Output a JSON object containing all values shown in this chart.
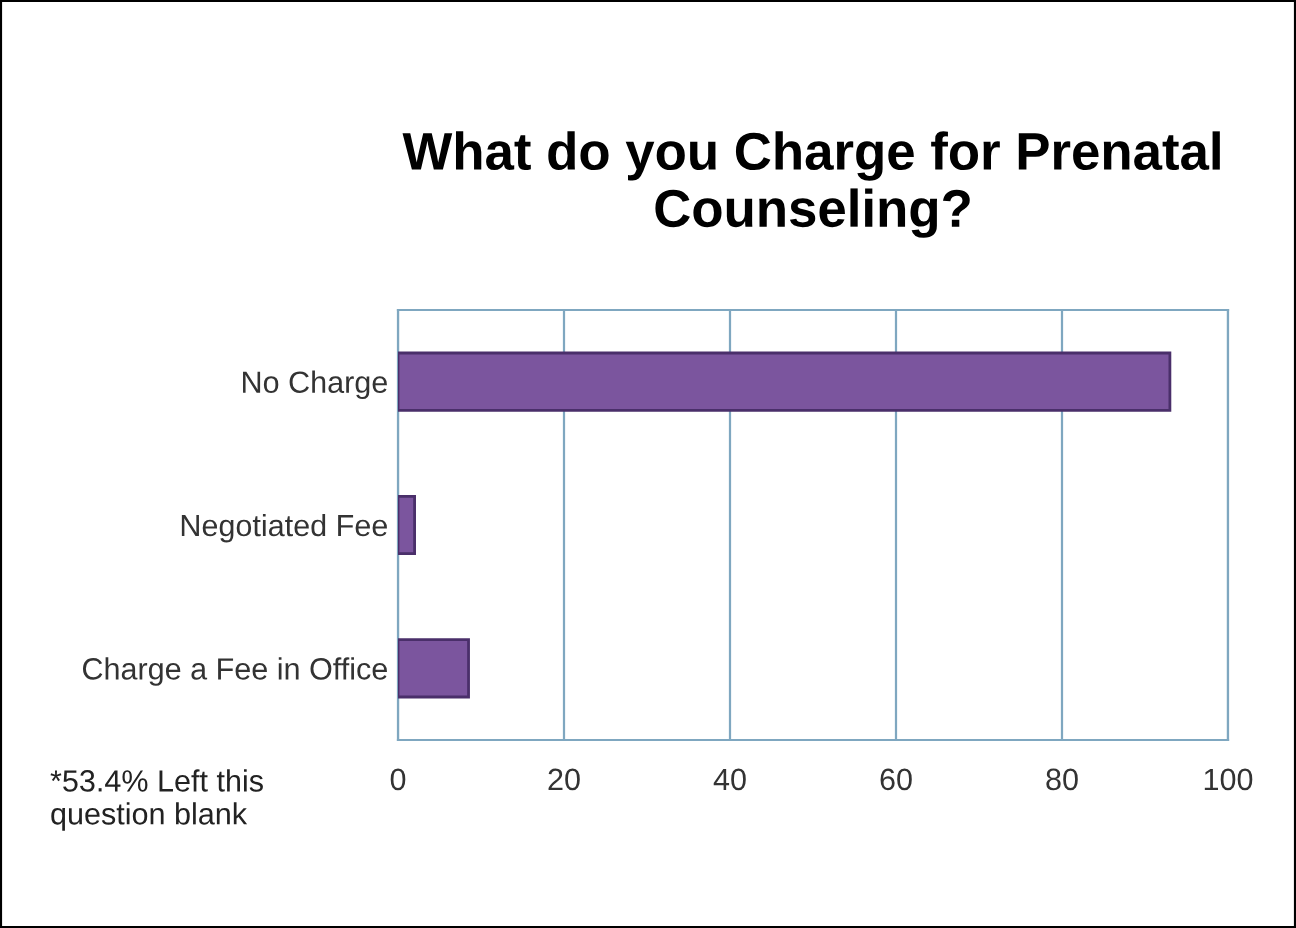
{
  "chart_data": {
    "type": "bar",
    "orientation": "horizontal",
    "title": "What do you Charge for Prenatal\nCounseling?",
    "categories": [
      "No Charge",
      "Negotiated Fee",
      "Charge a Fee in Office"
    ],
    "values": [
      93,
      2,
      8.5
    ],
    "color": "#7b559e",
    "xlim": [
      0,
      100
    ],
    "xticks": [
      0,
      20,
      40,
      60,
      80,
      100
    ],
    "grid": "x",
    "annotations": [
      "*53.4% Left this\nquestion blank"
    ]
  }
}
